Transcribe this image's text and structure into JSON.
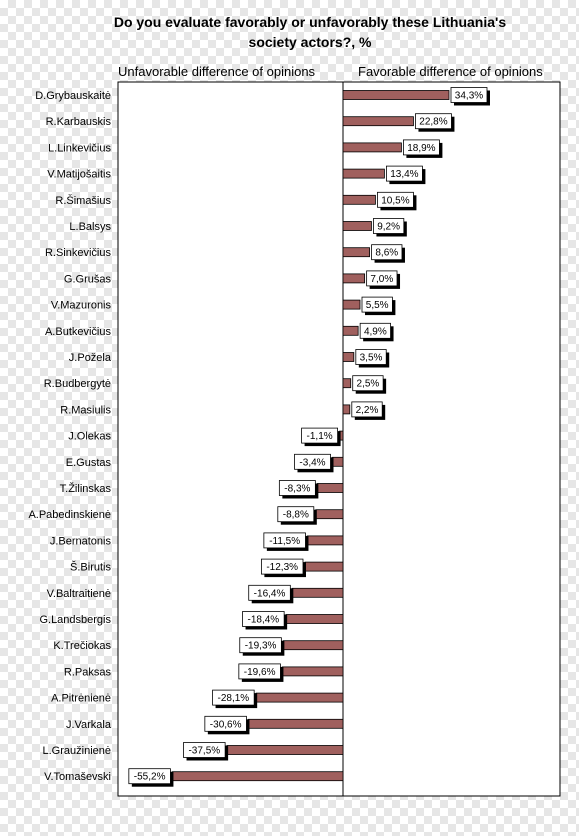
{
  "chart_data": {
    "type": "bar",
    "orientation": "horizontal",
    "title": "Do you  evaluate favorably or unfavorably these Lithuania's society actors?, %",
    "title_lines": [
      "Do you  evaluate favorably or unfavorably these Lithuania's",
      "society actors?, %"
    ],
    "unfavorable_label": "Unfavorable  difference of opinions",
    "favorable_label": "Favorable difference of opinions",
    "xlim": [
      -55.2,
      34.3
    ],
    "grid": false,
    "bar_color": "#a0605e",
    "categories": [
      "D.Grybauskaitė",
      "R.Karbauskis",
      "L.Linkevičius",
      "V.Matijošaitis",
      "R.Šimašius",
      "L.Balsys",
      "R.Sinkevičius",
      "G.Grušas",
      "V.Mazuronis",
      "A.Butkevičius",
      "J.Požela",
      "R.Budbergytė",
      "R.Masiulis",
      "J.Olekas",
      "E.Gustas",
      "T.Žilinskas",
      "A.Pabedinskienė",
      "J.Bernatonis",
      "Š.Birutis",
      "V.Baltraitienė",
      "G.Landsbergis",
      "K.Trečiokas",
      "R.Paksas",
      "A.Pitrėnienė",
      "J.Varkala",
      "L.Graužinienė",
      "V.Tomaševski"
    ],
    "values": [
      34.3,
      22.8,
      18.9,
      13.4,
      10.5,
      9.2,
      8.6,
      7.0,
      5.5,
      4.9,
      3.5,
      2.5,
      2.2,
      -1.1,
      -3.4,
      -8.3,
      -8.8,
      -11.5,
      -12.3,
      -16.4,
      -18.4,
      -19.3,
      -19.6,
      -28.1,
      -30.6,
      -37.5,
      -55.2
    ],
    "value_labels": [
      "34,3%",
      "22,8%",
      "18,9%",
      "13,4%",
      "10,5%",
      "9,2%",
      "8,6%",
      "7,0%",
      "5,5%",
      "4,9%",
      "3,5%",
      "2,5%",
      "2,2%",
      "-1,1%",
      "-3,4%",
      "-8,3%",
      "-8,8%",
      "-11,5%",
      "-12,3%",
      "-16,4%",
      "-18,4%",
      "-19,3%",
      "-19,6%",
      "-28,1%",
      "-30,6%",
      "-37,5%",
      "-55,2%"
    ]
  }
}
